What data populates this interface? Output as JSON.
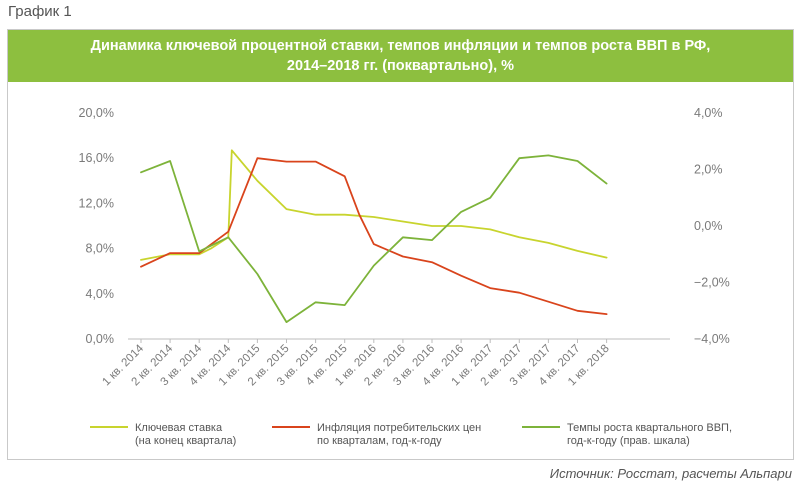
{
  "figure_label": "График 1",
  "source": "Источник: Росстат, расчеты Альпари",
  "chart_data": {
    "type": "line",
    "title": "Динамика ключевой процентной ставки, темпов инфляции и темпов роста ВВП в РФ,",
    "subtitle": "2014–2018 гг. (поквартально), %",
    "categories": [
      "1 кв. 2014",
      "2 кв. 2014",
      "3 кв. 2014",
      "4 кв. 2014",
      "1 кв. 2015",
      "2 кв. 2015",
      "3 кв. 2015",
      "4 кв. 2015",
      "1 кв. 2016",
      "2 кв. 2016",
      "3 кв. 2016",
      "4 кв. 2016",
      "1 кв. 2017",
      "2 кв. 2017",
      "3 кв. 2017",
      "4 кв. 2017",
      "1 кв. 2018"
    ],
    "y_left": {
      "min": 0,
      "max": 20,
      "ticks": [
        "0,0%",
        "4,0%",
        "8,0%",
        "12,0%",
        "16,0%",
        "20,0%"
      ]
    },
    "y_right": {
      "min": -4,
      "max": 4,
      "ticks": [
        "−4,0%",
        "−2,0%",
        "0,0%",
        "2,0%",
        "4,0%"
      ]
    },
    "grid": false,
    "legend_position": "bottom",
    "series": [
      {
        "name_lines": [
          "Ключевая ставка",
          "(на конец квартала)"
        ],
        "color": "#c8d42e",
        "axis": "left",
        "x": [
          0,
          1,
          2,
          2.4,
          3,
          3.12,
          4,
          5,
          6,
          7,
          8,
          9,
          10,
          11,
          12,
          13,
          14,
          15,
          16
        ],
        "values": [
          7.0,
          7.5,
          7.5,
          8.0,
          9.0,
          16.7,
          14.0,
          11.5,
          11.0,
          11.0,
          10.8,
          10.4,
          10.0,
          10.0,
          9.7,
          9.0,
          8.5,
          7.8,
          7.2
        ]
      },
      {
        "name_lines": [
          "Инфляция потребительских цен",
          "по кварталам, год-к-году"
        ],
        "color": "#d9441c",
        "axis": "left",
        "x": [
          0,
          1,
          2,
          3,
          4,
          5,
          6,
          7,
          7.5,
          8,
          9,
          10,
          11,
          12,
          13,
          14,
          15,
          16
        ],
        "values": [
          6.4,
          7.6,
          7.6,
          9.5,
          16.0,
          15.7,
          15.7,
          14.4,
          11.0,
          8.4,
          7.3,
          6.8,
          5.6,
          4.5,
          4.1,
          3.3,
          2.5,
          2.2
        ]
      },
      {
        "name_lines": [
          "Темпы роста квартального ВВП,",
          "год-к-году (прав. шкала)"
        ],
        "color": "#7db33a",
        "axis": "right",
        "x": [
          0,
          1,
          2,
          3,
          4,
          5,
          6,
          7,
          8,
          9,
          10,
          11,
          12,
          13,
          14,
          15,
          16
        ],
        "values": [
          1.9,
          2.3,
          -0.9,
          -0.4,
          -1.7,
          -3.4,
          -2.7,
          -2.8,
          -1.4,
          -0.4,
          -0.5,
          0.5,
          1.0,
          2.4,
          2.5,
          2.3,
          1.5
        ]
      }
    ]
  }
}
